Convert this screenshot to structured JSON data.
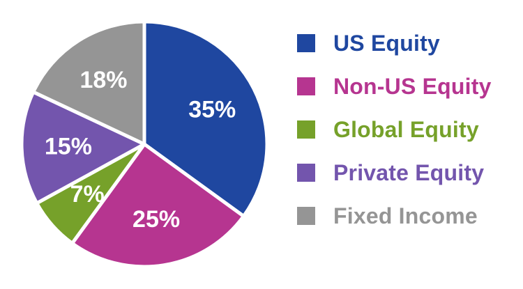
{
  "chart_data": {
    "type": "pie",
    "slices": [
      {
        "name": "US Equity",
        "value": 35,
        "label": "35%",
        "color": "#1f47a0"
      },
      {
        "name": "Non-US Equity",
        "value": 25,
        "label": "25%",
        "color": "#b63590"
      },
      {
        "name": "Global Equity",
        "value": 7,
        "label": "7%",
        "color": "#76a12a"
      },
      {
        "name": "Private Equity",
        "value": 15,
        "label": "15%",
        "color": "#7355ad"
      },
      {
        "name": "Fixed Income",
        "value": 18,
        "label": "18%",
        "color": "#959595"
      }
    ],
    "legend_position": "right"
  }
}
